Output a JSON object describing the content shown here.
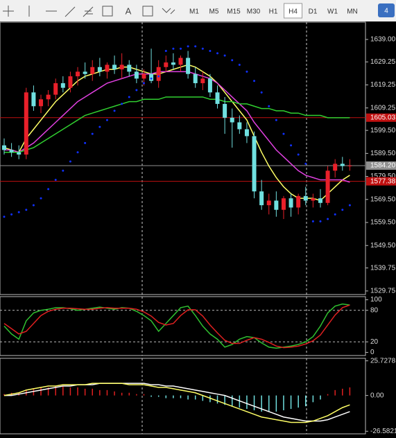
{
  "toolbar": {
    "text_tool": "A",
    "periods": [
      "M1",
      "M5",
      "M15",
      "M30",
      "H1",
      "H4",
      "D1",
      "W1",
      "MN"
    ],
    "active_period": "H4",
    "badge": "4"
  },
  "chart_data": [
    {
      "type": "candlestick",
      "ylim": [
        1528.2,
        1646.5
      ],
      "yticks": [
        {
          "value": 1639,
          "label": "1639.00"
        },
        1629.25,
        1619.25,
        1609.25,
        {
          "value": 1599.5,
          "label": "1599.50"
        },
        {
          "value": 1589.5,
          "label": "1589.50"
        },
        {
          "value": 1579.5,
          "label": "1579.50"
        },
        {
          "value": 1569.5,
          "label": "1569.50"
        },
        {
          "value": 1559.5,
          "label": "1559.50"
        },
        {
          "value": 1549.5,
          "label": "1549.50"
        },
        1539.75,
        1529.75
      ],
      "up_color": "#e8202a",
      "down_color": "#70e0e0",
      "open": [
        1593,
        1591,
        1590,
        1589,
        1616,
        1610,
        1613,
        1615,
        1620,
        1618,
        1623,
        1625,
        1624,
        1627,
        1625,
        1628,
        1626,
        1628,
        1625,
        1622,
        1624,
        1621,
        1627,
        1629,
        1628,
        1631,
        1624,
        1620,
        1622,
        1616,
        1611,
        1605,
        1603,
        1600,
        1597,
        1573,
        1567,
        1569,
        1565,
        1570,
        1566,
        1571,
        1569,
        1570,
        1568,
        1582,
        1585,
        1584
      ],
      "high": [
        1596,
        1594,
        1593,
        1618,
        1619,
        1615,
        1617,
        1622,
        1623,
        1625,
        1627,
        1629,
        1630,
        1631,
        1629,
        1632,
        1633,
        1630,
        1628,
        1626,
        1635,
        1630,
        1632,
        1633,
        1632,
        1634,
        1627,
        1625,
        1624,
        1619,
        1614,
        1609,
        1606,
        1603,
        1599,
        1578,
        1572,
        1573,
        1571,
        1572,
        1572,
        1575,
        1572,
        1574,
        1584,
        1587,
        1588,
        1587
      ],
      "low": [
        1589,
        1588,
        1587,
        1587,
        1608,
        1607,
        1610,
        1613,
        1616,
        1616,
        1619,
        1622,
        1621,
        1623,
        1622,
        1624,
        1622,
        1623,
        1620,
        1619,
        1620,
        1618,
        1625,
        1626,
        1625,
        1622,
        1618,
        1617,
        1614,
        1609,
        1598,
        1592,
        1598,
        1594,
        1570,
        1565,
        1563,
        1562,
        1561,
        1562,
        1563,
        1567,
        1566,
        1566,
        1567,
        1579,
        1582,
        1582
      ],
      "close": [
        1591,
        1590,
        1589,
        1616,
        1610,
        1613,
        1615,
        1620,
        1618,
        1623,
        1625,
        1624,
        1627,
        1625,
        1628,
        1626,
        1628,
        1625,
        1622,
        1624,
        1621,
        1627,
        1629,
        1628,
        1631,
        1624,
        1620,
        1622,
        1616,
        1611,
        1605,
        1603,
        1600,
        1597,
        1573,
        1567,
        1569,
        1565,
        1570,
        1566,
        1571,
        1569,
        1570,
        1568,
        1582,
        1585,
        1584,
        1584.2
      ],
      "series": [
        {
          "color": "#ffff66",
          "values": [
            1592,
            1591,
            1590,
            1596,
            1600,
            1604,
            1608,
            1612,
            1615,
            1618,
            1621,
            1623,
            1624,
            1625,
            1626,
            1626,
            1627,
            1627,
            1626,
            1625,
            1624,
            1624,
            1625,
            1626,
            1627,
            1628,
            1627,
            1625,
            1623,
            1620,
            1616,
            1612,
            1608,
            1604,
            1597,
            1590,
            1584,
            1579,
            1575,
            1572,
            1570,
            1570,
            1570,
            1569,
            1572,
            1575,
            1578,
            1580
          ]
        },
        {
          "color": "#e040e0",
          "values": [
            1591,
            1591,
            1590,
            1592,
            1594,
            1597,
            1600,
            1603,
            1606,
            1609,
            1612,
            1614,
            1616,
            1618,
            1620,
            1621,
            1622,
            1623,
            1624,
            1624,
            1624,
            1625,
            1625,
            1625,
            1625,
            1625,
            1624,
            1623,
            1622,
            1620,
            1617,
            1614,
            1611,
            1608,
            1603,
            1599,
            1595,
            1591,
            1588,
            1585,
            1582,
            1580,
            1579,
            1578,
            1578,
            1578,
            1578,
            1577
          ]
        },
        {
          "color": "#30d030",
          "values": [
            1590,
            1590,
            1590,
            1591,
            1592,
            1594,
            1596,
            1598,
            1600,
            1602,
            1604,
            1606,
            1607,
            1608,
            1609,
            1610,
            1611,
            1612,
            1612,
            1613,
            1613,
            1613,
            1614,
            1614,
            1614,
            1614,
            1614,
            1614,
            1613,
            1613,
            1612,
            1612,
            1611,
            1611,
            1610,
            1609,
            1609,
            1608,
            1608,
            1607,
            1607,
            1606,
            1606,
            1606,
            1605,
            1605,
            1605,
            1605
          ]
        }
      ],
      "sar": {
        "color": "#1030ff",
        "values": [
          1562,
          1563,
          1564,
          1565,
          1567,
          1570,
          1574,
          1578,
          1582,
          1586,
          1590,
          1594,
          1598,
          1601,
          1604,
          1608,
          1611,
          1614,
          1617,
          1620,
          1622,
          1623,
          1634,
          1635,
          1635,
          1636,
          1636,
          1635,
          1634,
          1633,
          1632,
          1630,
          1628,
          1625,
          1621,
          1616,
          1610,
          1604,
          1598,
          1593,
          1589,
          1585,
          1560,
          1560,
          1561,
          1563,
          1565,
          1567
        ]
      },
      "price_lines": [
        {
          "value": 1605.03,
          "color": "#c01010"
        },
        {
          "value": 1584.2,
          "label": "1584.20",
          "color": "#909090"
        },
        {
          "value": 1577.38,
          "color": "#c01010"
        }
      ]
    },
    {
      "type": "line",
      "ylim": [
        -6,
        106
      ],
      "yticks": [
        100,
        80,
        20,
        0
      ],
      "levels": [
        80,
        20
      ],
      "series": [
        {
          "color": "#30c030",
          "values": [
            50,
            35,
            25,
            60,
            75,
            80,
            82,
            85,
            85,
            83,
            80,
            82,
            84,
            86,
            84,
            82,
            85,
            84,
            78,
            70,
            60,
            40,
            55,
            70,
            85,
            88,
            70,
            50,
            35,
            25,
            10,
            15,
            25,
            30,
            28,
            18,
            10,
            8,
            10,
            12,
            15,
            20,
            30,
            50,
            75,
            88,
            92,
            90
          ]
        },
        {
          "color": "#e02020",
          "values": [
            55,
            45,
            35,
            40,
            55,
            70,
            78,
            82,
            84,
            84,
            83,
            82,
            82,
            84,
            85,
            84,
            84,
            84,
            82,
            77,
            69,
            57,
            52,
            55,
            70,
            81,
            81,
            69,
            52,
            37,
            23,
            17,
            17,
            23,
            28,
            25,
            19,
            12,
            9,
            10,
            12,
            16,
            22,
            33,
            52,
            71,
            85,
            90
          ]
        }
      ]
    },
    {
      "type": "bar",
      "ylim": [
        -28.5,
        27.6
      ],
      "yticks": [
        25.7278,
        {
          "value": 0,
          "label": "0.00"
        },
        -26.5821
      ],
      "up_color": "#e02020",
      "down_color": "#70e0e0",
      "values": [
        1,
        2,
        2,
        4,
        5,
        6,
        6,
        7,
        7,
        6,
        6,
        5,
        5,
        4,
        4,
        3,
        2,
        2,
        1,
        1,
        -1,
        -1,
        -2,
        -2,
        -2,
        -3,
        -3,
        -4,
        -5,
        -6,
        -7,
        -8,
        -9,
        -10,
        -11,
        -12,
        -12,
        -12,
        -11,
        -10,
        -9,
        -8,
        -5,
        -3,
        1,
        4,
        5,
        6
      ],
      "series": [
        {
          "color": "#ffffff",
          "values": [
            0,
            0,
            1,
            2,
            3,
            4,
            5,
            6,
            7,
            7,
            8,
            8,
            8,
            9,
            9,
            9,
            9,
            9,
            9,
            9,
            8,
            8,
            7,
            7,
            6,
            5,
            4,
            3,
            2,
            1,
            0,
            -2,
            -4,
            -6,
            -8,
            -10,
            -12,
            -14,
            -16,
            -17,
            -18,
            -19,
            -19,
            -19,
            -18,
            -16,
            -14,
            -12
          ]
        },
        {
          "color": "#ffff66",
          "values": [
            0,
            1,
            2,
            4,
            5,
            6,
            7,
            7,
            8,
            8,
            8,
            8,
            9,
            9,
            9,
            9,
            9,
            8,
            8,
            8,
            7,
            6,
            6,
            5,
            4,
            3,
            2,
            0,
            -2,
            -4,
            -6,
            -8,
            -10,
            -12,
            -14,
            -16,
            -17,
            -18,
            -19,
            -20,
            -20,
            -20,
            -19,
            -17,
            -15,
            -12,
            -9,
            -7
          ]
        }
      ]
    }
  ]
}
